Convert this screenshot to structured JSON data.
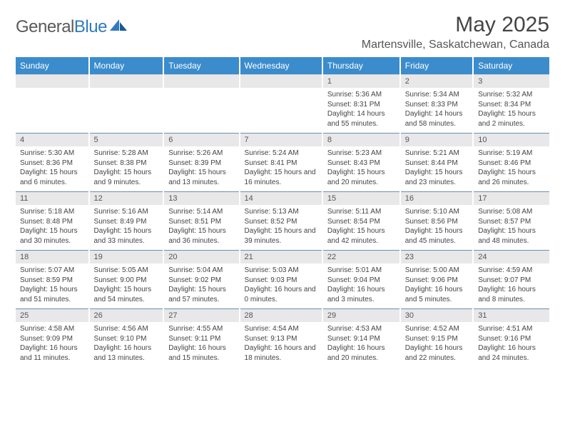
{
  "logo": {
    "word1": "General",
    "word2": "Blue"
  },
  "title": "May 2025",
  "location": "Martensville, Saskatchewan, Canada",
  "colors": {
    "header_bg": "#3b8ccc",
    "header_text": "#ffffff",
    "daynum_bg": "#e8e8e8",
    "row_divider": "#6a90b5",
    "body_text": "#444444",
    "logo_gray": "#5a5a5a",
    "logo_blue": "#2f7bbf"
  },
  "typography": {
    "title_fontsize": 30,
    "location_fontsize": 16,
    "weekday_fontsize": 12,
    "daynum_fontsize": 11,
    "cell_fontsize": 10
  },
  "weekdays": [
    "Sunday",
    "Monday",
    "Tuesday",
    "Wednesday",
    "Thursday",
    "Friday",
    "Saturday"
  ],
  "weeks": [
    {
      "nums": [
        "",
        "",
        "",
        "",
        "1",
        "2",
        "3"
      ],
      "cells": [
        null,
        null,
        null,
        null,
        {
          "sunrise": "5:36 AM",
          "sunset": "8:31 PM",
          "daylight": "14 hours and 55 minutes."
        },
        {
          "sunrise": "5:34 AM",
          "sunset": "8:33 PM",
          "daylight": "14 hours and 58 minutes."
        },
        {
          "sunrise": "5:32 AM",
          "sunset": "8:34 PM",
          "daylight": "15 hours and 2 minutes."
        }
      ]
    },
    {
      "nums": [
        "4",
        "5",
        "6",
        "7",
        "8",
        "9",
        "10"
      ],
      "cells": [
        {
          "sunrise": "5:30 AM",
          "sunset": "8:36 PM",
          "daylight": "15 hours and 6 minutes."
        },
        {
          "sunrise": "5:28 AM",
          "sunset": "8:38 PM",
          "daylight": "15 hours and 9 minutes."
        },
        {
          "sunrise": "5:26 AM",
          "sunset": "8:39 PM",
          "daylight": "15 hours and 13 minutes."
        },
        {
          "sunrise": "5:24 AM",
          "sunset": "8:41 PM",
          "daylight": "15 hours and 16 minutes."
        },
        {
          "sunrise": "5:23 AM",
          "sunset": "8:43 PM",
          "daylight": "15 hours and 20 minutes."
        },
        {
          "sunrise": "5:21 AM",
          "sunset": "8:44 PM",
          "daylight": "15 hours and 23 minutes."
        },
        {
          "sunrise": "5:19 AM",
          "sunset": "8:46 PM",
          "daylight": "15 hours and 26 minutes."
        }
      ]
    },
    {
      "nums": [
        "11",
        "12",
        "13",
        "14",
        "15",
        "16",
        "17"
      ],
      "cells": [
        {
          "sunrise": "5:18 AM",
          "sunset": "8:48 PM",
          "daylight": "15 hours and 30 minutes."
        },
        {
          "sunrise": "5:16 AM",
          "sunset": "8:49 PM",
          "daylight": "15 hours and 33 minutes."
        },
        {
          "sunrise": "5:14 AM",
          "sunset": "8:51 PM",
          "daylight": "15 hours and 36 minutes."
        },
        {
          "sunrise": "5:13 AM",
          "sunset": "8:52 PM",
          "daylight": "15 hours and 39 minutes."
        },
        {
          "sunrise": "5:11 AM",
          "sunset": "8:54 PM",
          "daylight": "15 hours and 42 minutes."
        },
        {
          "sunrise": "5:10 AM",
          "sunset": "8:56 PM",
          "daylight": "15 hours and 45 minutes."
        },
        {
          "sunrise": "5:08 AM",
          "sunset": "8:57 PM",
          "daylight": "15 hours and 48 minutes."
        }
      ]
    },
    {
      "nums": [
        "18",
        "19",
        "20",
        "21",
        "22",
        "23",
        "24"
      ],
      "cells": [
        {
          "sunrise": "5:07 AM",
          "sunset": "8:59 PM",
          "daylight": "15 hours and 51 minutes."
        },
        {
          "sunrise": "5:05 AM",
          "sunset": "9:00 PM",
          "daylight": "15 hours and 54 minutes."
        },
        {
          "sunrise": "5:04 AM",
          "sunset": "9:02 PM",
          "daylight": "15 hours and 57 minutes."
        },
        {
          "sunrise": "5:03 AM",
          "sunset": "9:03 PM",
          "daylight": "16 hours and 0 minutes."
        },
        {
          "sunrise": "5:01 AM",
          "sunset": "9:04 PM",
          "daylight": "16 hours and 3 minutes."
        },
        {
          "sunrise": "5:00 AM",
          "sunset": "9:06 PM",
          "daylight": "16 hours and 5 minutes."
        },
        {
          "sunrise": "4:59 AM",
          "sunset": "9:07 PM",
          "daylight": "16 hours and 8 minutes."
        }
      ]
    },
    {
      "nums": [
        "25",
        "26",
        "27",
        "28",
        "29",
        "30",
        "31"
      ],
      "cells": [
        {
          "sunrise": "4:58 AM",
          "sunset": "9:09 PM",
          "daylight": "16 hours and 11 minutes."
        },
        {
          "sunrise": "4:56 AM",
          "sunset": "9:10 PM",
          "daylight": "16 hours and 13 minutes."
        },
        {
          "sunrise": "4:55 AM",
          "sunset": "9:11 PM",
          "daylight": "16 hours and 15 minutes."
        },
        {
          "sunrise": "4:54 AM",
          "sunset": "9:13 PM",
          "daylight": "16 hours and 18 minutes."
        },
        {
          "sunrise": "4:53 AM",
          "sunset": "9:14 PM",
          "daylight": "16 hours and 20 minutes."
        },
        {
          "sunrise": "4:52 AM",
          "sunset": "9:15 PM",
          "daylight": "16 hours and 22 minutes."
        },
        {
          "sunrise": "4:51 AM",
          "sunset": "9:16 PM",
          "daylight": "16 hours and 24 minutes."
        }
      ]
    }
  ],
  "labels": {
    "sunrise": "Sunrise: ",
    "sunset": "Sunset: ",
    "daylight": "Daylight: "
  }
}
